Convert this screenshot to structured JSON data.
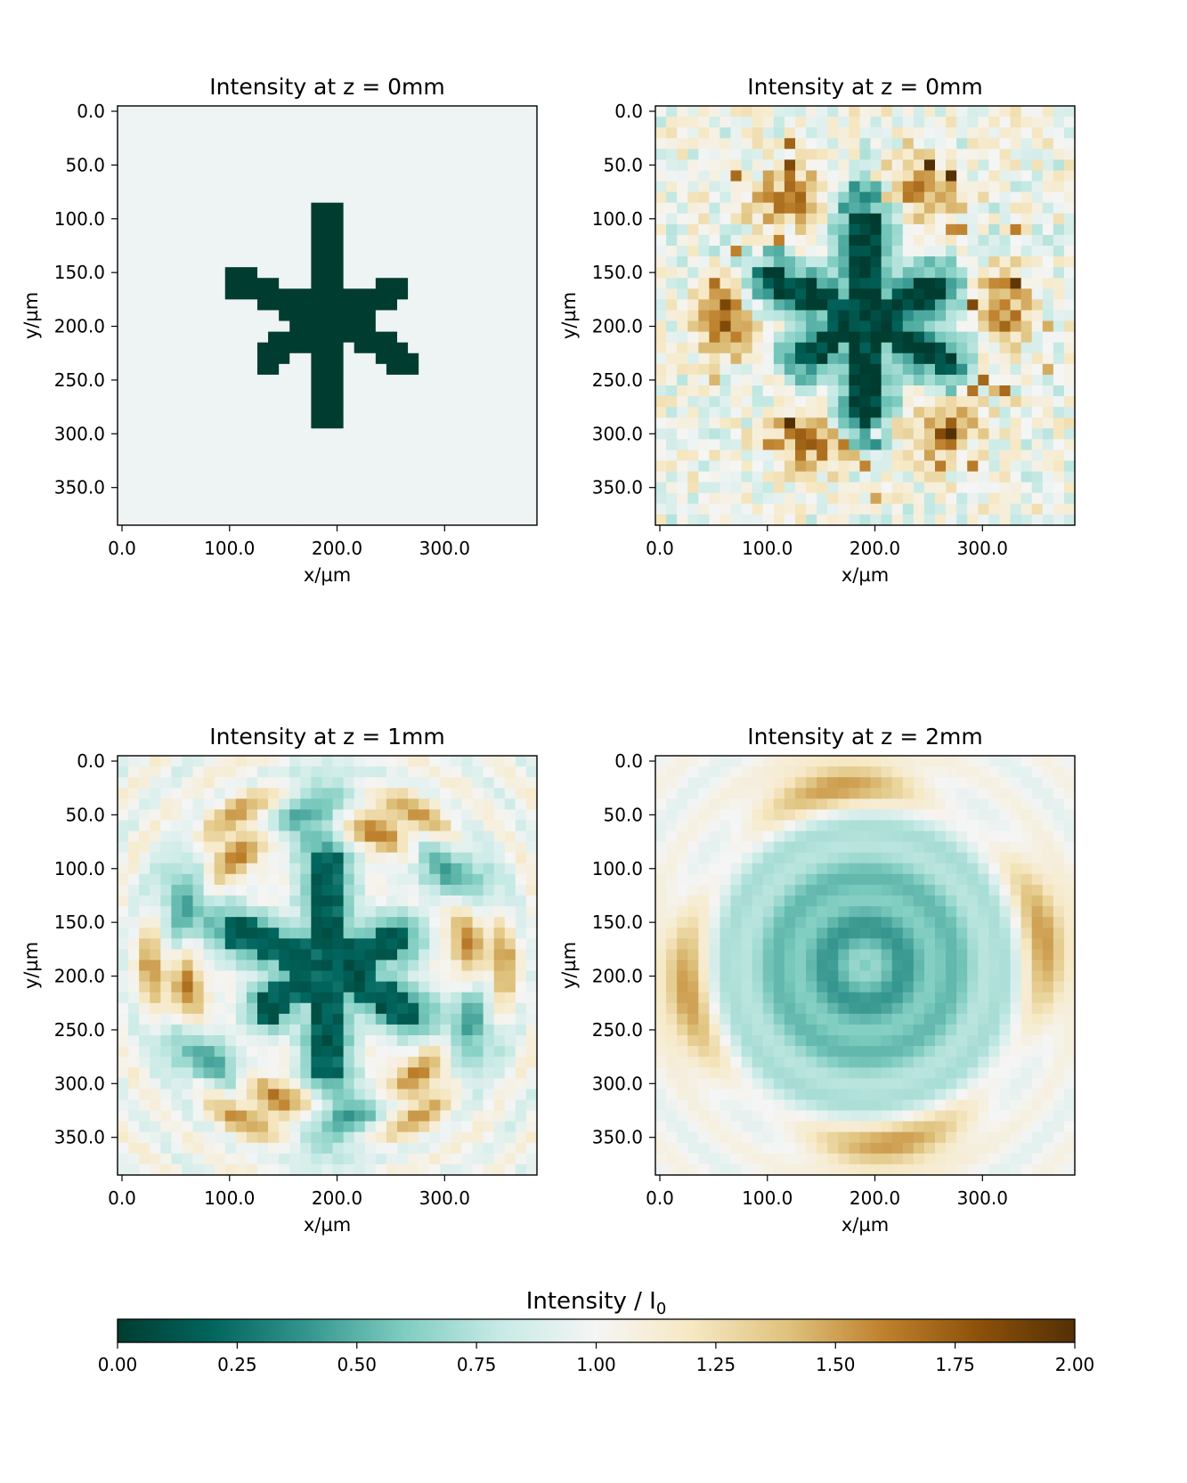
{
  "chart_data": [
    {
      "type": "heatmap",
      "title": "Intensity at z = 0mm",
      "xlabel": "x/µm",
      "ylabel": "y/µm",
      "xticks": [
        "0.0",
        "100.0",
        "200.0",
        "300.0"
      ],
      "yticks": [
        "0.0",
        "50.0",
        "100.0",
        "150.0",
        "200.0",
        "250.0",
        "300.0",
        "350.0"
      ],
      "xlim": [
        0,
        390
      ],
      "ylim": [
        390,
        0
      ],
      "pattern": "binary asterisk mask: intensity 0 inside a six-armed star centred near (195, 195) µm, intensity 1 elsewhere",
      "value_range": [
        0,
        1
      ]
    },
    {
      "type": "heatmap",
      "title": "Intensity at z = 0mm",
      "xlabel": "x/µm",
      "ylabel": "y/µm",
      "xticks": [
        "0.0",
        "100.0",
        "200.0",
        "300.0"
      ],
      "yticks": [
        "0.0",
        "50.0",
        "100.0",
        "150.0",
        "200.0",
        "250.0",
        "300.0",
        "350.0"
      ],
      "xlim": [
        0,
        390
      ],
      "ylim": [
        390,
        0
      ],
      "pattern": "noisy reconstruction of the asterisk: dark core ~0.1, teal halo ~0.5, ring of bright speckles up to ~1.9, weak noise near 1 at edges",
      "value_range": [
        0,
        1.9
      ]
    },
    {
      "type": "heatmap",
      "title": "Intensity at z = 1mm",
      "xlabel": "x/µm",
      "ylabel": "y/µm",
      "xticks": [
        "0.0",
        "100.0",
        "200.0",
        "300.0"
      ],
      "yticks": [
        "0.0",
        "50.0",
        "100.0",
        "150.0",
        "200.0",
        "250.0",
        "300.0",
        "350.0"
      ],
      "xlim": [
        0,
        390
      ],
      "ylim": [
        390,
        0
      ],
      "pattern": "diffracted star: dark six-lobed core ~0.1, alternating bright (~1.6) and dim rings around it",
      "value_range": [
        0.05,
        1.8
      ]
    },
    {
      "type": "heatmap",
      "title": "Intensity at z = 2mm",
      "xlabel": "x/µm",
      "ylabel": "y/µm",
      "xticks": [
        "0.0",
        "100.0",
        "200.0",
        "300.0"
      ],
      "yticks": [
        "0.0",
        "50.0",
        "100.0",
        "150.0",
        "200.0",
        "250.0",
        "300.0",
        "350.0"
      ],
      "xlim": [
        0,
        390
      ],
      "ylim": [
        390,
        0
      ],
      "pattern": "smooth diffraction: broad dark disc ~0.3 with brighter centre spot, bright arcs ~1.6 near the borders",
      "value_range": [
        0.2,
        1.7
      ]
    }
  ],
  "colorbar": {
    "label": "Intensity / I",
    "label_subscript": "0",
    "colormap": "BrBG_r",
    "range": [
      0,
      2
    ],
    "ticks": [
      "0.00",
      "0.25",
      "0.50",
      "0.75",
      "1.00",
      "1.25",
      "1.50",
      "1.75",
      "2.00"
    ],
    "colors": [
      "#003c30",
      "#01665e",
      "#35978f",
      "#80cdc1",
      "#c7eae5",
      "#f5f5f5",
      "#f6e8c3",
      "#dfc27d",
      "#bf812d",
      "#8c510a",
      "#543005"
    ]
  }
}
